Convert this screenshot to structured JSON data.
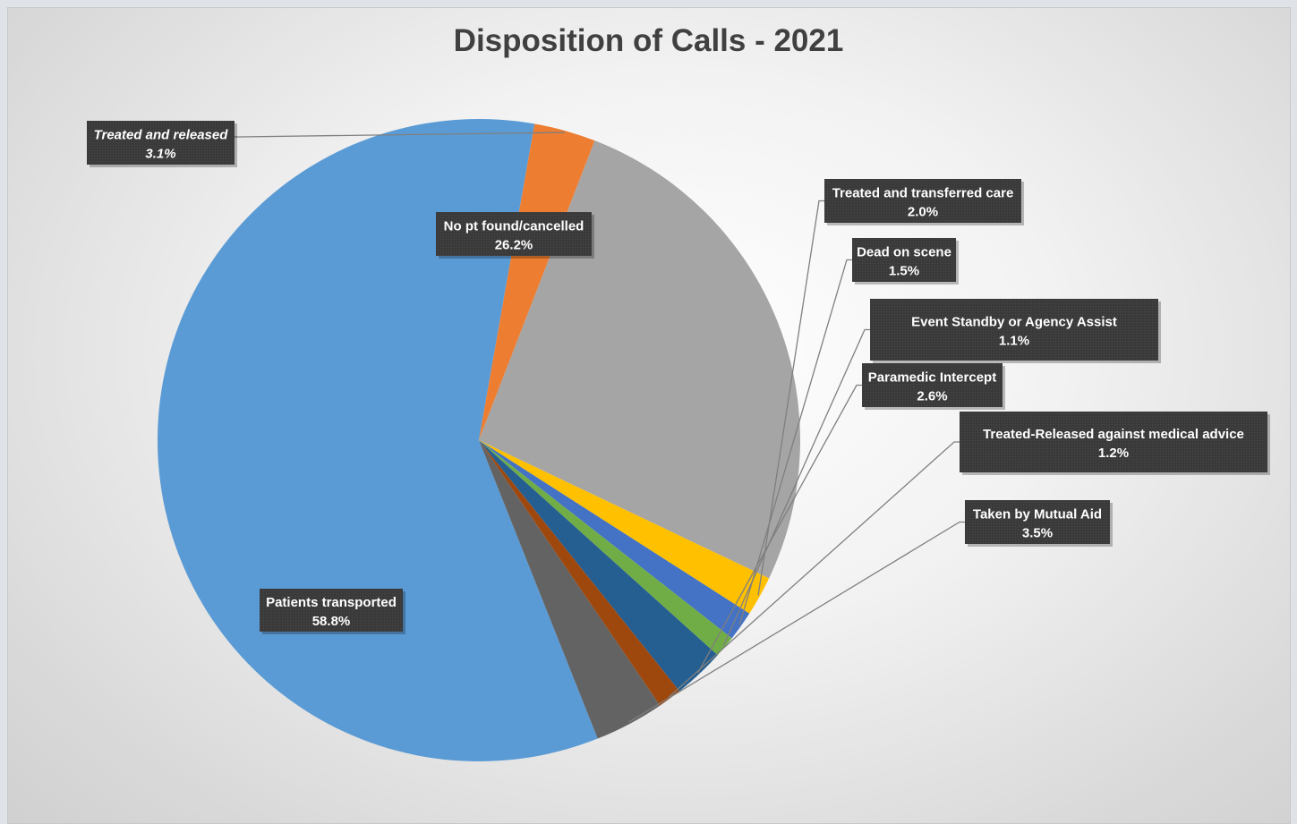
{
  "chart_data": {
    "type": "pie",
    "title": "Disposition of Calls - 2021",
    "slices": [
      {
        "label": "Patients transported",
        "value_label": "58.8%",
        "value": 58.8,
        "color": "#5b9bd5",
        "italic": false
      },
      {
        "label": "Treated and released",
        "value_label": "3.1%",
        "value": 3.1,
        "color": "#ed7d31",
        "italic": true
      },
      {
        "label": "No pt found/cancelled",
        "value_label": "26.2%",
        "value": 26.2,
        "color": "#a5a5a5",
        "italic": false
      },
      {
        "label": "Treated and transferred care",
        "value_label": "2.0%",
        "value": 2.0,
        "color": "#ffc000",
        "italic": false
      },
      {
        "label": "Dead on scene",
        "value_label": "1.5%",
        "value": 1.5,
        "color": "#4472c4",
        "italic": false
      },
      {
        "label": "Event Standby or Agency Assist",
        "value_label": "1.1%",
        "value": 1.1,
        "color": "#70ad47",
        "italic": false
      },
      {
        "label": "Paramedic Intercept",
        "value_label": "2.6%",
        "value": 2.6,
        "color": "#255e91",
        "italic": false
      },
      {
        "label": "Treated-Released against medical advice",
        "value_label": "1.2%",
        "value": 1.2,
        "color": "#9e480e",
        "italic": false
      },
      {
        "label": "Taken by Mutual Aid",
        "value_label": "3.5%",
        "value": 3.5,
        "color": "#636363",
        "italic": false
      }
    ]
  }
}
